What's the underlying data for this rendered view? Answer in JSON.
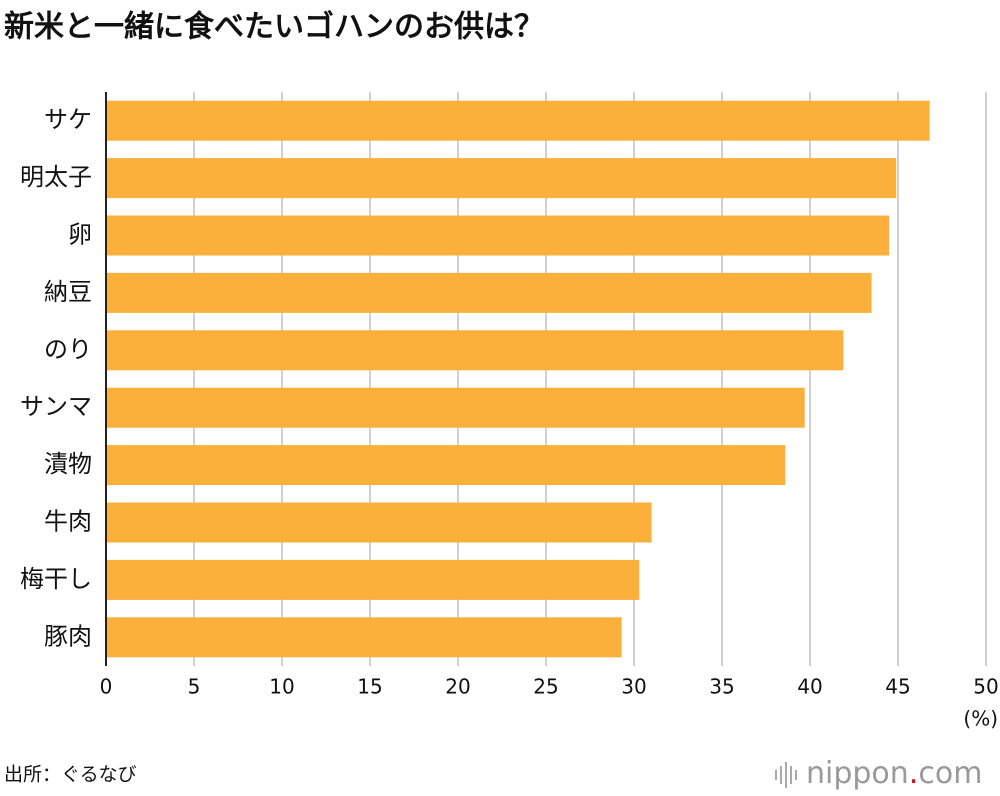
{
  "chart_data": {
    "type": "bar",
    "orientation": "horizontal",
    "title": "新米と一緒に食べたいゴハンのお供は？",
    "categories": [
      "サケ",
      "明太子",
      "卵",
      "納豆",
      "のり",
      "サンマ",
      "漬物",
      "牛肉",
      "梅干し",
      "豚肉"
    ],
    "values": [
      46.8,
      44.9,
      44.5,
      43.5,
      41.9,
      39.7,
      38.6,
      31.0,
      30.3,
      29.3
    ],
    "color": "#fbb03b",
    "xlim": [
      0,
      50
    ],
    "xticks": [
      0,
      5,
      10,
      15,
      20,
      25,
      30,
      35,
      40,
      45,
      50
    ],
    "x_unit": "(%)",
    "grid": true,
    "source": "出所：ぐるなび"
  },
  "logo": {
    "name": "nippon",
    "dot": ".",
    "suffix": "com"
  }
}
